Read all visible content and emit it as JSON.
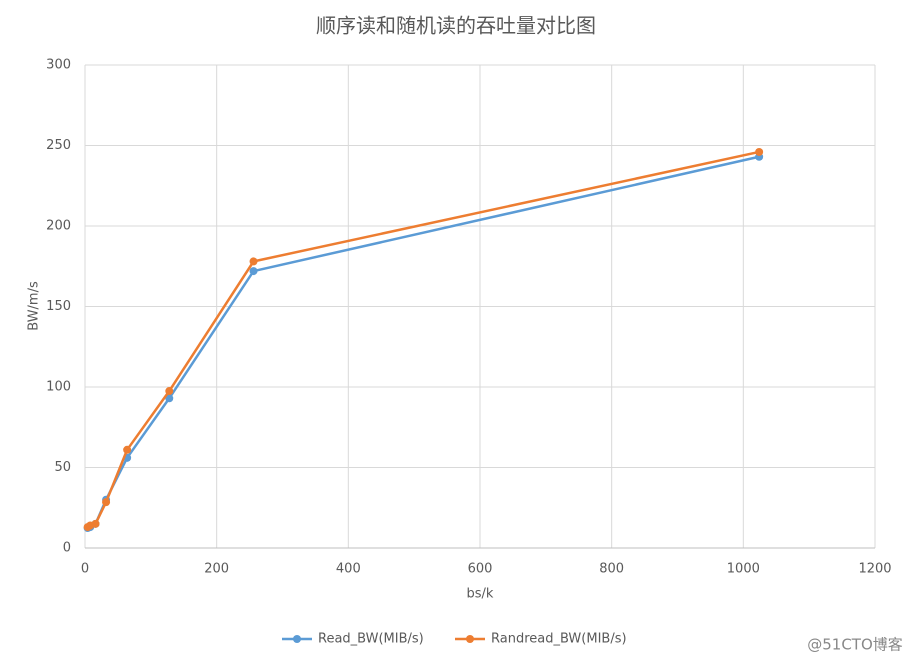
{
  "chart_data": {
    "type": "line",
    "title": "顺序读和随机读的吞吐量对比图",
    "x_label": "bs/k",
    "y_label": "BW/m/s",
    "x": [
      4,
      8,
      16,
      32,
      64,
      128,
      256,
      1024
    ],
    "series": [
      {
        "name": "Read_BW(MIB/s)",
        "color": "#5b9bd5",
        "values": [
          12.4,
          13,
          15,
          30,
          56,
          93,
          172,
          243
        ]
      },
      {
        "name": "Randread_BW(MIB/s)",
        "color": "#ed7d31",
        "values": [
          13,
          14,
          15,
          28.5,
          61,
          97.5,
          178,
          246
        ]
      }
    ],
    "xlim": [
      0,
      1200
    ],
    "xticks": [
      0,
      200,
      400,
      600,
      800,
      1000,
      1200
    ],
    "ylim": [
      0,
      300
    ],
    "yticks": [
      0,
      50,
      100,
      150,
      200,
      250,
      300
    ],
    "grid": true,
    "legend": "bottom",
    "watermark": "@51CTO博客"
  }
}
